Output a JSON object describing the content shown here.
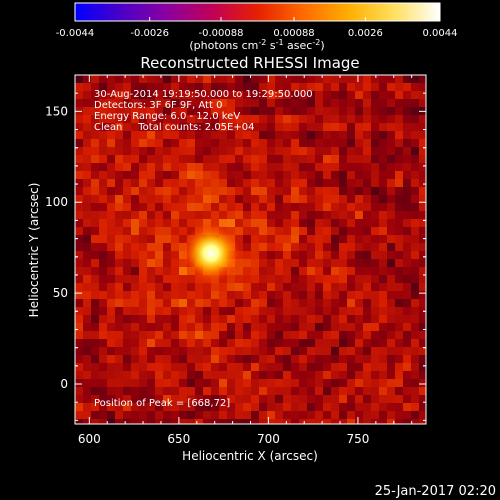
{
  "colorbar": {
    "ticks": [
      "-0.0044",
      "-0.0026",
      "-0.00088",
      "0.00088",
      "0.0026",
      "0.0044"
    ],
    "tick_values": [
      -0.0044,
      -0.0026,
      -0.00088,
      0.00088,
      0.0026,
      0.0044
    ],
    "range": [
      -0.0044,
      0.0044
    ],
    "colors": [
      "#0000ff",
      "#4a00c8",
      "#8a00a0",
      "#c00058",
      "#e62000",
      "#ff6a00",
      "#ffae00",
      "#ffe060",
      "#ffffff"
    ],
    "unit_main": "(photons cm",
    "unit_sup1": "-2",
    "unit_mid": " s",
    "unit_sup2": "-1",
    "unit_end": " asec",
    "unit_sup3": "-2",
    "unit_close": ")"
  },
  "chart_data": {
    "type": "heatmap",
    "title": "Reconstructed RHESSI Image",
    "xlabel": "Heliocentric X (arcsec)",
    "ylabel": "Heliocentric Y (arcsec)",
    "xlim": [
      592,
      788
    ],
    "ylim": [
      -22,
      170
    ],
    "xticks": [
      600,
      650,
      700,
      750
    ],
    "yticks": [
      0,
      50,
      100,
      150
    ],
    "peak": {
      "x": 668,
      "y": 72
    },
    "annotations": [
      "30-Aug-2014 19:19:50.000 to 19:29:50.000",
      "Detectors: 3F 6F 9F, Att 0",
      "Energy Range: 6.0 - 12.0 keV",
      "Clean     Total counts: 2.05E+04"
    ],
    "peak_label": "Position of Peak = [668,72]"
  },
  "footer": {
    "timestamp": "25-Jan-2017 02:20"
  }
}
